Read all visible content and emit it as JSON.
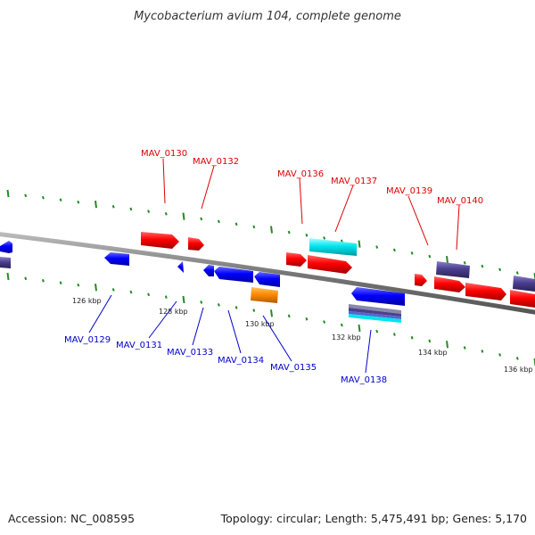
{
  "title": "Mycobacterium avium 104, complete genome",
  "footer": {
    "accession": "Accession: NC_008595",
    "summary": "Topology: circular; Length: 5,475,491 bp; Genes: 5,170"
  },
  "colors": {
    "forward_label": "#dd0000",
    "reverse_label": "#0000cc",
    "backbone": "#888888",
    "ticks": "#228B22",
    "forward_gene": "#ff0000",
    "reverse_gene": "#0000ff",
    "pseudo_gene": "#4b3f8f",
    "cyan_gene": "#00e5ee",
    "orange_gene": "#ff8c00"
  },
  "ticks": {
    "labels": [
      "126 kbp",
      "128 kbp",
      "130 kbp",
      "132 kbp",
      "134 kbp",
      "136 kbp"
    ]
  },
  "genes": {
    "forward_labels": [
      "MAV_0130",
      "MAV_0132",
      "MAV_0136",
      "MAV_0137",
      "MAV_0139",
      "MAV_0140"
    ],
    "reverse_labels": [
      "MAV_0129",
      "MAV_0131",
      "MAV_0133",
      "MAV_0134",
      "MAV_0135",
      "MAV_0138"
    ]
  }
}
